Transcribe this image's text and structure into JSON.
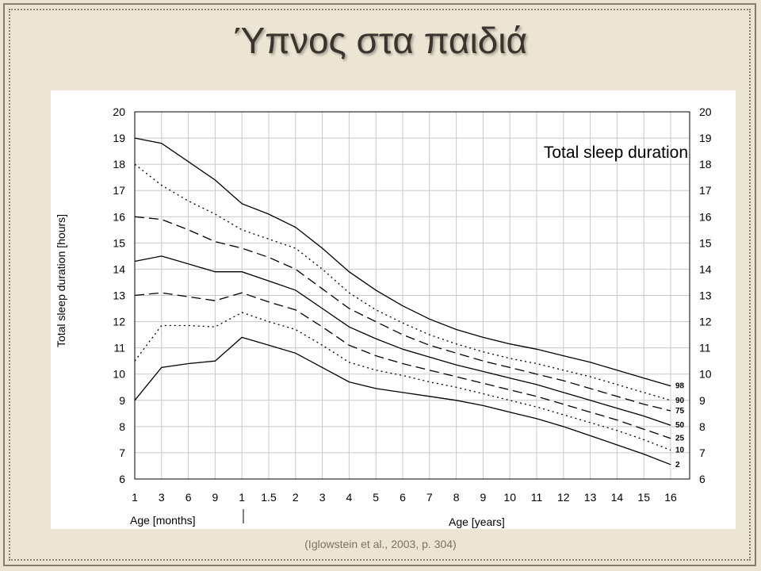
{
  "slide": {
    "title": "Ύπνος στα παιδιά",
    "citation": "(Iglowstein et al., 2003, p. 304)"
  },
  "chart_data": {
    "type": "line",
    "title": "Total sleep duration",
    "ylabel": "Total sleep duration [hours]",
    "xlabel_months": "Age [months]",
    "xlabel_years": "Age [years]",
    "ylim": [
      6,
      20
    ],
    "yticks": [
      "6",
      "7",
      "8",
      "9",
      "10",
      "11",
      "12",
      "13",
      "14",
      "15",
      "16",
      "17",
      "18",
      "19",
      "20"
    ],
    "grid": true,
    "x": [
      "1",
      "3",
      "6",
      "9",
      "1",
      "1.5",
      "2",
      "3",
      "4",
      "5",
      "6",
      "7",
      "8",
      "9",
      "10",
      "11",
      "12",
      "13",
      "14",
      "15",
      "16"
    ],
    "x_unit": [
      "months",
      "months",
      "months",
      "months",
      "years",
      "years",
      "years",
      "years",
      "years",
      "years",
      "years",
      "years",
      "years",
      "years",
      "years",
      "years",
      "years",
      "years",
      "years",
      "years",
      "years"
    ],
    "series": [
      {
        "name": "98",
        "style": "solid",
        "values": [
          19.0,
          18.8,
          18.1,
          17.4,
          16.5,
          16.1,
          15.6,
          14.8,
          13.9,
          13.2,
          12.6,
          12.1,
          11.7,
          11.4,
          11.15,
          10.95,
          10.7,
          10.45,
          10.15,
          9.85,
          9.55
        ]
      },
      {
        "name": "90",
        "style": "dotted",
        "values": [
          18.0,
          17.2,
          16.6,
          16.1,
          15.5,
          15.15,
          14.8,
          14.0,
          13.1,
          12.45,
          11.95,
          11.5,
          11.15,
          10.85,
          10.6,
          10.4,
          10.15,
          9.9,
          9.6,
          9.3,
          9.0
        ]
      },
      {
        "name": "75",
        "style": "dashed",
        "values": [
          16.0,
          15.9,
          15.5,
          15.05,
          14.8,
          14.45,
          14.0,
          13.25,
          12.5,
          12.0,
          11.5,
          11.1,
          10.8,
          10.5,
          10.25,
          10.0,
          9.75,
          9.45,
          9.15,
          8.85,
          8.6
        ]
      },
      {
        "name": "50",
        "style": "solid",
        "values": [
          14.3,
          14.5,
          14.2,
          13.9,
          13.9,
          13.55,
          13.2,
          12.5,
          11.8,
          11.35,
          10.95,
          10.65,
          10.35,
          10.1,
          9.85,
          9.6,
          9.3,
          9.0,
          8.7,
          8.4,
          8.05
        ]
      },
      {
        "name": "25",
        "style": "dashed",
        "values": [
          13.0,
          13.1,
          12.95,
          12.8,
          13.1,
          12.75,
          12.45,
          11.8,
          11.1,
          10.7,
          10.4,
          10.15,
          9.9,
          9.65,
          9.4,
          9.15,
          8.85,
          8.55,
          8.25,
          7.9,
          7.55
        ]
      },
      {
        "name": "10",
        "style": "dotted",
        "values": [
          10.5,
          11.85,
          11.85,
          11.8,
          12.35,
          12.0,
          11.7,
          11.1,
          10.45,
          10.15,
          9.95,
          9.7,
          9.5,
          9.25,
          9.0,
          8.75,
          8.45,
          8.15,
          7.85,
          7.5,
          7.1
        ]
      },
      {
        "name": "2",
        "style": "solid",
        "values": [
          9.0,
          10.25,
          10.4,
          10.5,
          11.4,
          11.1,
          10.8,
          10.25,
          9.7,
          9.45,
          9.3,
          9.15,
          9.0,
          8.8,
          8.55,
          8.3,
          8.0,
          7.65,
          7.3,
          6.95,
          6.55
        ]
      }
    ]
  }
}
